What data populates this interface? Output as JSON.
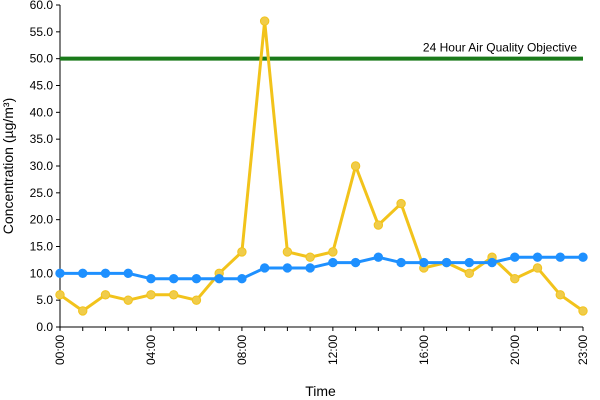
{
  "chart_data": {
    "type": "line",
    "xlabel": "Time",
    "ylabel": "Concentration (µg/m³)",
    "x": [
      "00:00",
      "01:00",
      "02:00",
      "03:00",
      "04:00",
      "05:00",
      "06:00",
      "07:00",
      "08:00",
      "09:00",
      "10:00",
      "11:00",
      "12:00",
      "13:00",
      "14:00",
      "15:00",
      "16:00",
      "17:00",
      "18:00",
      "19:00",
      "20:00",
      "21:00",
      "22:00",
      "23:00"
    ],
    "x_tick_labels": [
      "00:00",
      "04:00",
      "08:00",
      "12:00",
      "16:00",
      "20:00",
      "23:00"
    ],
    "ylim": [
      0,
      60
    ],
    "y_tick_labels": [
      "0.0",
      "5.0",
      "10.0",
      "15.0",
      "20.0",
      "25.0",
      "30.0",
      "35.0",
      "40.0",
      "45.0",
      "50.0",
      "55.0",
      "60.0"
    ],
    "grid": false,
    "series": [
      {
        "color": "#f2c31b",
        "marker_color": "#f0cc4a",
        "values": [
          6,
          3,
          6,
          5,
          6,
          6,
          5,
          10,
          14,
          57,
          14,
          13,
          14,
          30,
          19,
          23,
          11,
          12,
          10,
          13,
          9,
          11,
          6,
          3
        ]
      },
      {
        "color": "#1e90ff",
        "marker_color": "#1e90ff",
        "values": [
          10,
          10,
          10,
          10,
          9,
          9,
          9,
          9,
          9,
          11,
          11,
          11,
          12,
          12,
          13,
          12,
          12,
          12,
          12,
          12,
          13,
          13,
          13,
          13
        ]
      }
    ],
    "reference_line": {
      "value": 50,
      "label": "24 Hour Air Quality Objective",
      "color": "#1a7a1a"
    }
  }
}
